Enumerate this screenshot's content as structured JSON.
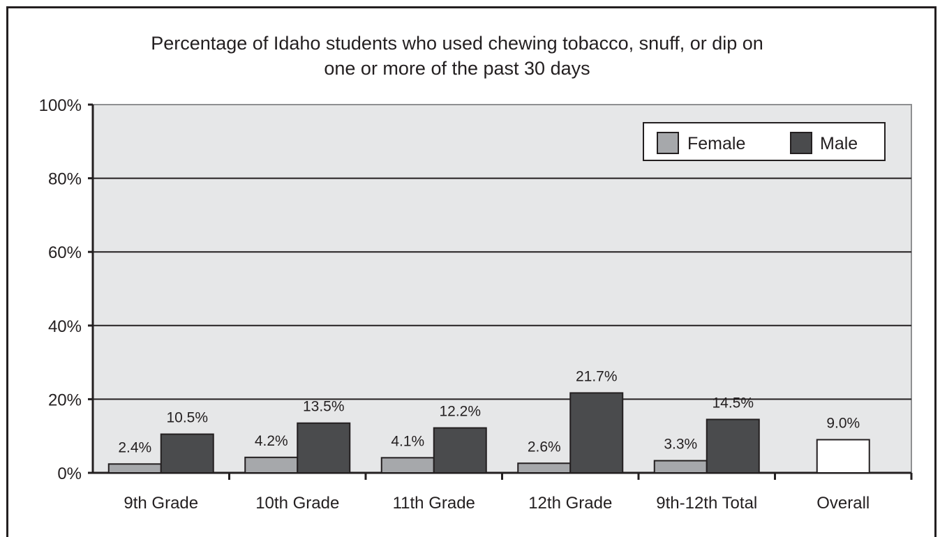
{
  "chart_data": {
    "type": "bar",
    "title": "Percentage of Idaho students who used chewing tobacco, snuff, or dip on one or more of the past 30 days",
    "title_lines": [
      "Percentage of Idaho students who used chewing tobacco, snuff, or dip on",
      "one or more of the past 30 days"
    ],
    "categories": [
      "9th Grade",
      "10th Grade",
      "11th Grade",
      "12th Grade",
      "9th-12th Total",
      "Overall"
    ],
    "series": [
      {
        "name": "Female",
        "color": "#a6a8ab",
        "values": [
          2.4,
          4.2,
          4.1,
          2.6,
          3.3,
          null
        ],
        "labels": [
          "2.4%",
          "4.2%",
          "4.1%",
          "2.6%",
          "3.3%",
          ""
        ]
      },
      {
        "name": "Male",
        "color": "#4a4b4d",
        "values": [
          10.5,
          13.5,
          12.2,
          21.7,
          14.5,
          null
        ],
        "labels": [
          "10.5%",
          "13.5%",
          "12.2%",
          "21.7%",
          "14.5%",
          ""
        ]
      }
    ],
    "overall": {
      "category": "Overall",
      "value": 9.0,
      "label": "9.0%",
      "color": "#ffffff"
    },
    "ylim": [
      0,
      100
    ],
    "yticks": [
      0,
      20,
      40,
      60,
      80,
      100
    ],
    "ytick_labels": [
      "0%",
      "20%",
      "40%",
      "60%",
      "80%",
      "100%"
    ],
    "grid": true,
    "legend_position": "top-right",
    "plot_background": "#e6e7e8"
  }
}
